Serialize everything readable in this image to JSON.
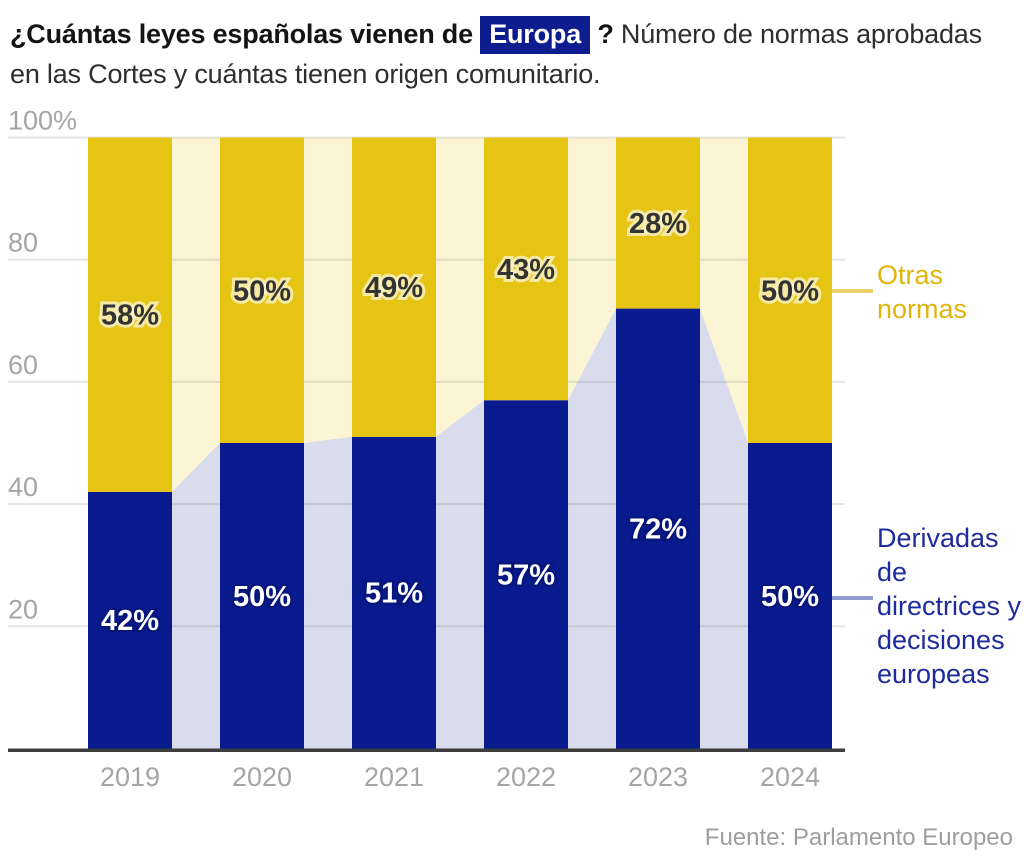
{
  "title": {
    "bold_prefix": "¿Cuántas leyes españolas vienen de ",
    "highlight": "Europa",
    "bold_suffix": " ? ",
    "regular": "Número de normas aprobadas en las Cortes y cuántas tienen origen comunitario."
  },
  "chart_data": {
    "type": "bar",
    "subtype": "stacked-percentage-bars-with-connecting-area",
    "categories": [
      "2019",
      "2020",
      "2021",
      "2022",
      "2023",
      "2024"
    ],
    "series": [
      {
        "name": "Derivadas de directrices y decisiones europeas",
        "values": [
          42,
          50,
          51,
          57,
          72,
          50
        ],
        "color": "#081a8e",
        "area_color": "#d8dcec",
        "label_color": "#ffffff"
      },
      {
        "name": "Otras normas",
        "values": [
          58,
          50,
          49,
          43,
          28,
          50
        ],
        "color": "#e5c413",
        "area_color": "#fbf5d5",
        "label_color": "#333333"
      }
    ],
    "title": "¿Cuántas leyes españolas vienen de Europa? Número de normas aprobadas en las Cortes y cuántas tienen origen comunitario.",
    "xlabel": "",
    "ylabel": "",
    "ylim": [
      0,
      100
    ],
    "y_ticks": [
      "100%",
      "80",
      "60",
      "40",
      "20"
    ],
    "y_tick_values": [
      100,
      80,
      60,
      40,
      20
    ],
    "grid": true,
    "legend_position": "right",
    "axis_label_color": "#a5a5a5",
    "axis_line_color": "#3d3d3d"
  },
  "legend": {
    "otras": {
      "label": "Otras\nnormas",
      "color": "#dfb40d",
      "line_color": "#ecd06a"
    },
    "derivadas": {
      "label": "Derivadas\nde\ndirectrices y\ndecisiones\neuropeas",
      "color": "#1d2b9d",
      "line_color": "#8f9cd1"
    }
  },
  "source": "Fuente: Parlamento Europeo",
  "colors": {
    "highlight_bg": "#0d1c8f",
    "bar_blue": "#081a8e",
    "bar_gold": "#e5c413",
    "area_lavender": "#d8dcec",
    "area_cream": "#fbf5d5",
    "grid": "#6e6e6e",
    "background": "#ffffff"
  }
}
